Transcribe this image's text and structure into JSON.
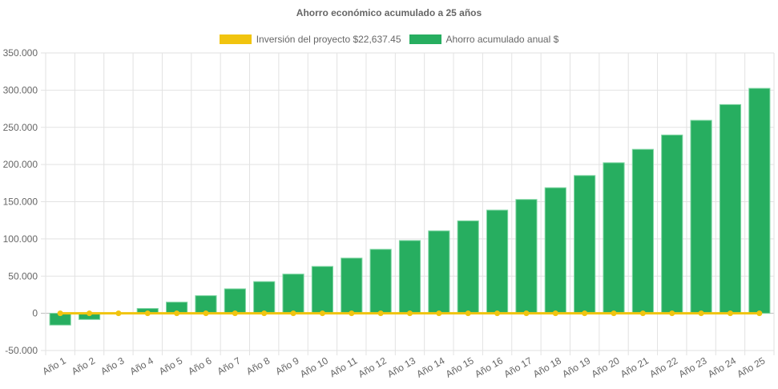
{
  "chart_data": {
    "type": "bar",
    "title": "Ahorro económico acumulado a 25 años",
    "categories": [
      "Año 1",
      "Año 2",
      "Año 3",
      "Año 4",
      "Año 5",
      "Año 6",
      "Año 7",
      "Año 8",
      "Año 9",
      "Año 10",
      "Año 11",
      "Año 12",
      "Año 13",
      "Año 14",
      "Año 15",
      "Año 16",
      "Año 17",
      "Año 18",
      "Año 19",
      "Año 20",
      "Año 21",
      "Año 22",
      "Año 23",
      "Año 24",
      "Año 25"
    ],
    "series": [
      {
        "name": "Inversión del proyecto $22,637.45",
        "type": "line",
        "color": "#f1c40f",
        "values": [
          0,
          0,
          0,
          0,
          0,
          0,
          0,
          0,
          0,
          0,
          0,
          0,
          0,
          0,
          0,
          0,
          0,
          0,
          0,
          0,
          0,
          0,
          0,
          0,
          0
        ]
      },
      {
        "name": "Ahorro acumulado anual $",
        "type": "bar",
        "color": "#27ae60",
        "values": [
          -15800,
          -8300,
          0,
          6500,
          15000,
          23700,
          32900,
          42600,
          52700,
          63000,
          74200,
          86000,
          97800,
          110800,
          124300,
          138700,
          153000,
          168800,
          185200,
          202400,
          220400,
          239700,
          259400,
          280600,
          302400
        ]
      }
    ],
    "ylim": [
      -50000,
      350000
    ],
    "yticks": [
      -50000,
      0,
      50000,
      100000,
      150000,
      200000,
      250000,
      300000,
      350000
    ],
    "ytick_labels": [
      "-50.000",
      "0",
      "50.000",
      "100.000",
      "150.000",
      "200.000",
      "250.000",
      "300.000",
      "350.000"
    ],
    "grid": true,
    "legend": "top"
  }
}
